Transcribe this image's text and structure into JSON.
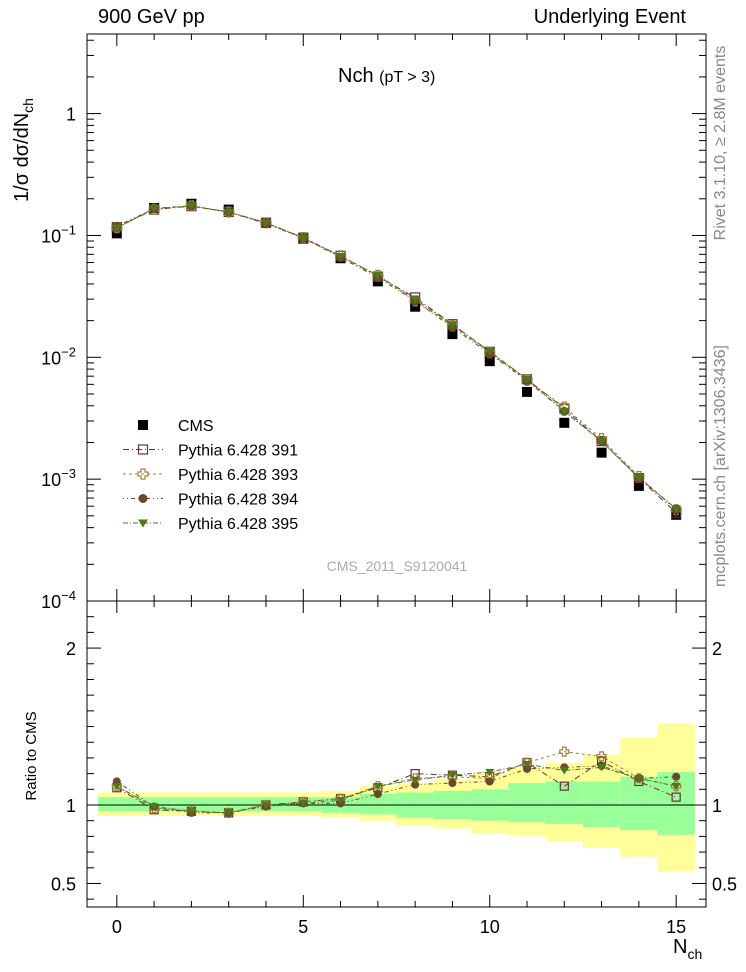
{
  "header": {
    "left": "900 GeV pp",
    "right": "Underlying Event"
  },
  "side_labels": {
    "rivet": "Rivet 3.1.10, ≥ 2.8M events",
    "mcplots": "mcplots.cern.ch [arXiv:1306.3436]"
  },
  "watermark": "CMS_2011_S9120041",
  "colors": {
    "cms": "#000000",
    "p391": "#6b2d3e",
    "p393": "#a08040",
    "p394": "#6b4a2a",
    "p395": "#4a7a1a",
    "band_inner": "#99ff99",
    "band_outer": "#ffff99"
  },
  "chart_data": [
    {
      "type": "scatter",
      "title": "Nch",
      "title_sub": "(pT >  3)",
      "ylabel": "1/σ dσ/dN",
      "ylabel_sub": "ch",
      "yscale": "log",
      "ylim": [
        0.0001,
        4.5
      ],
      "xlim": [
        -0.8,
        15.8
      ],
      "y_ticks": [
        {
          "v": 0.0001,
          "base": "10",
          "exp": "−4"
        },
        {
          "v": 0.001,
          "base": "10",
          "exp": "−3"
        },
        {
          "v": 0.01,
          "base": "10",
          "exp": "−2"
        },
        {
          "v": 0.1,
          "base": "10",
          "exp": "−1"
        },
        {
          "v": 1,
          "base": "1",
          "exp": ""
        }
      ],
      "x": [
        0,
        1,
        2,
        3,
        4,
        5,
        6,
        7,
        8,
        9,
        10,
        11,
        12,
        13,
        14,
        15
      ],
      "legend_position": "lower-left",
      "series": [
        {
          "name": "CMS",
          "marker": "filled-square",
          "values": [
            0.104,
            0.168,
            0.182,
            0.163,
            0.127,
            0.094,
            0.065,
            0.042,
            0.026,
            0.0155,
            0.0093,
            0.0052,
            0.0029,
            0.00165,
            0.00088,
            0.00051
          ]
        },
        {
          "name": "Pythia 6.428 391",
          "marker": "open-square",
          "values": [
            0.117,
            0.163,
            0.174,
            0.156,
            0.127,
            0.096,
            0.068,
            0.046,
            0.031,
            0.0187,
            0.0111,
            0.0066,
            0.0038,
            0.00205,
            0.00102,
            0.00053
          ]
        },
        {
          "name": "Pythia 6.428 393",
          "marker": "open-cross",
          "values": [
            0.116,
            0.164,
            0.175,
            0.156,
            0.127,
            0.096,
            0.068,
            0.047,
            0.029,
            0.0182,
            0.0109,
            0.0065,
            0.0039,
            0.00215,
            0.00105,
            0.00056
          ]
        },
        {
          "name": "Pythia 6.428 394",
          "marker": "filled-circle",
          "values": [
            0.119,
            0.166,
            0.174,
            0.155,
            0.125,
            0.095,
            0.066,
            0.045,
            0.029,
            0.0176,
            0.0107,
            0.0064,
            0.0036,
            0.00205,
            0.00103,
            0.00057
          ]
        },
        {
          "name": "Pythia 6.428 395",
          "marker": "filled-triangle-down",
          "values": [
            0.115,
            0.167,
            0.175,
            0.155,
            0.127,
            0.095,
            0.067,
            0.047,
            0.03,
            0.0185,
            0.0112,
            0.0066,
            0.0036,
            0.00205,
            0.00103,
            0.00057
          ]
        }
      ]
    },
    {
      "type": "scatter",
      "ylabel": "Ratio to CMS",
      "xlabel": "N",
      "xlabel_sub": "ch",
      "ylim": [
        0.35,
        2.3
      ],
      "xlim": [
        -0.8,
        15.8
      ],
      "x_ticks": [
        0,
        5,
        10,
        15
      ],
      "y_ticks": [
        0.5,
        1,
        2
      ],
      "y_tick_labels": [
        "0.5",
        "1",
        "2"
      ],
      "x": [
        0,
        1,
        2,
        3,
        4,
        5,
        6,
        7,
        8,
        9,
        10,
        11,
        12,
        13,
        14,
        15
      ],
      "band_inner": [
        [
          0.96,
          1.05
        ],
        [
          0.96,
          1.05
        ],
        [
          0.96,
          1.05
        ],
        [
          0.96,
          1.05
        ],
        [
          0.96,
          1.05
        ],
        [
          0.96,
          1.05
        ],
        [
          0.95,
          1.05
        ],
        [
          0.94,
          1.07
        ],
        [
          0.92,
          1.08
        ],
        [
          0.91,
          1.09
        ],
        [
          0.9,
          1.1
        ],
        [
          0.89,
          1.14
        ],
        [
          0.88,
          1.15
        ],
        [
          0.86,
          1.15
        ],
        [
          0.84,
          1.18
        ],
        [
          0.81,
          1.21
        ]
      ],
      "band_outer": [
        [
          0.93,
          1.08
        ],
        [
          0.93,
          1.08
        ],
        [
          0.93,
          1.08
        ],
        [
          0.93,
          1.08
        ],
        [
          0.93,
          1.08
        ],
        [
          0.93,
          1.08
        ],
        [
          0.92,
          1.09
        ],
        [
          0.9,
          1.12
        ],
        [
          0.87,
          1.14
        ],
        [
          0.85,
          1.16
        ],
        [
          0.82,
          1.2
        ],
        [
          0.8,
          1.24
        ],
        [
          0.77,
          1.27
        ],
        [
          0.73,
          1.32
        ],
        [
          0.67,
          1.43
        ],
        [
          0.58,
          1.52
        ]
      ],
      "series": [
        {
          "name": "Pythia 6.428 391",
          "marker": "open-square",
          "values": [
            1.11,
            0.97,
            0.96,
            0.95,
            1.0,
            1.02,
            1.04,
            1.11,
            1.2,
            1.19,
            1.18,
            1.27,
            1.12,
            1.28,
            1.15,
            1.05
          ]
        },
        {
          "name": "Pythia 6.428 393",
          "marker": "open-cross",
          "values": [
            1.12,
            0.98,
            0.96,
            0.95,
            1.0,
            1.02,
            1.04,
            1.12,
            1.17,
            1.18,
            1.17,
            1.27,
            1.34,
            1.31,
            1.17,
            1.12
          ]
        },
        {
          "name": "Pythia 6.428 394",
          "marker": "filled-circle",
          "values": [
            1.15,
            0.99,
            0.95,
            0.95,
            0.99,
            1.01,
            1.01,
            1.07,
            1.13,
            1.14,
            1.15,
            1.23,
            1.24,
            1.25,
            1.17,
            1.18
          ]
        },
        {
          "name": "Pythia 6.428 395",
          "marker": "filled-triangle-down",
          "values": [
            1.12,
            0.99,
            0.96,
            0.95,
            1.0,
            1.01,
            1.03,
            1.12,
            1.16,
            1.19,
            1.21,
            1.26,
            1.22,
            1.24,
            1.17,
            1.12
          ]
        }
      ]
    }
  ]
}
